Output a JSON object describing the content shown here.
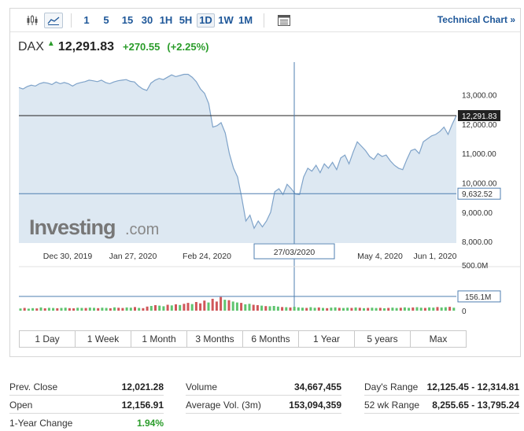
{
  "toolbar": {
    "chart_type_icons": [
      "candlestick-icon",
      "area-chart-icon"
    ],
    "timeframes": [
      "1",
      "5",
      "15",
      "30",
      "1H",
      "5H",
      "1D",
      "1W",
      "1M"
    ],
    "active_timeframe": "1D",
    "table_icon": "table-icon",
    "technical_chart_label": "Technical Chart »"
  },
  "quote": {
    "symbol": "DAX",
    "direction": "up",
    "price": "12,291.83",
    "change": "+270.55",
    "change_pct": "(+2.25%)"
  },
  "colors": {
    "area_fill": "#dde8f2",
    "line": "#7fa3c9",
    "positive": "#2a9c2a",
    "volume_up": "#5fc46f",
    "volume_down": "#d0575a",
    "link": "#1e5799"
  },
  "chart_data": {
    "type": "area",
    "title": "",
    "series": [
      {
        "values": [
          13250,
          13200,
          13280,
          13330,
          13300,
          13380,
          13420,
          13400,
          13350,
          13440,
          13380,
          13420,
          13380,
          13300,
          13380,
          13420,
          13450,
          13500,
          13480,
          13450,
          13500,
          13420,
          13380,
          13440,
          13480,
          13500,
          13520,
          13460,
          13440,
          13300,
          13200,
          13150,
          13400,
          13500,
          13560,
          13520,
          13600,
          13680,
          13620,
          13660,
          13700,
          13700,
          13600,
          13450,
          13200,
          13050,
          12700,
          11900,
          11950,
          12050,
          11700,
          11000,
          10500,
          10200,
          9500,
          8700,
          8900,
          8450,
          8700,
          8500,
          8700,
          9000,
          9700,
          9800,
          9600,
          9950,
          9800,
          9620,
          9600,
          10200,
          10500,
          10400,
          10600,
          10350,
          10650,
          10500,
          10700,
          10450,
          10850,
          10950,
          10650,
          11050,
          11400,
          11250,
          11100,
          10900,
          10800,
          11000,
          10900,
          10950,
          10750,
          10600,
          10500,
          10450,
          10800,
          11100,
          11150,
          11000,
          11400,
          11500,
          11600,
          11650,
          11750,
          11900,
          11650,
          12000,
          12291.83
        ]
      }
    ],
    "x_tick_labels": [
      "Dec 30, 2019",
      "Jan 27, 2020",
      "Feb 24, 2020",
      "May 4, 2020",
      "Jun 1, 2020"
    ],
    "crosshair_x_label": "27/03/2020",
    "y_tick_labels": [
      "13,000.00",
      "12,000.00",
      "11,000.00",
      "10,000.00",
      "9,000.00",
      "8,000.00"
    ],
    "ylim": [
      7950,
      13900
    ],
    "current_price_label": "12,291.83",
    "crosshair_y_label": "9,632.52",
    "volume": {
      "values_m": [
        24,
        30,
        22,
        28,
        25,
        35,
        26,
        31,
        29,
        27,
        30,
        33,
        28,
        26,
        32,
        30,
        29,
        34,
        31,
        28,
        33,
        30,
        27,
        36,
        32,
        29,
        35,
        33,
        40,
        30,
        28,
        45,
        52,
        60,
        55,
        48,
        65,
        58,
        70,
        62,
        75,
        85,
        72,
        95,
        80,
        110,
        90,
        130,
        100,
        150,
        120,
        115,
        100,
        90,
        85,
        70,
        75,
        65,
        60,
        55,
        50,
        48,
        52,
        45,
        40,
        38,
        35,
        42,
        36,
        33,
        30,
        38,
        32,
        35,
        30,
        28,
        34,
        36,
        31,
        29,
        33,
        30,
        35,
        32,
        28,
        30,
        33,
        29,
        31,
        27,
        30,
        34,
        29,
        32,
        36,
        31,
        35,
        38,
        33,
        30,
        36,
        34,
        40,
        35,
        38,
        42,
        33
      ],
      "up": [
        1,
        0,
        1,
        1,
        0,
        1,
        0,
        1,
        1,
        0,
        1,
        1,
        0,
        0,
        1,
        1,
        0,
        1,
        1,
        0,
        1,
        1,
        0,
        1,
        0,
        0,
        1,
        1,
        0,
        1,
        0,
        0,
        1,
        0,
        1,
        1,
        0,
        1,
        0,
        1,
        0,
        0,
        1,
        0,
        0,
        0,
        1,
        0,
        0,
        0,
        1,
        0,
        1,
        1,
        0,
        1,
        1,
        0,
        0,
        1,
        0,
        1,
        1,
        1,
        0,
        1,
        0,
        1,
        1,
        1,
        0,
        1,
        1,
        0,
        1,
        0,
        1,
        1,
        0,
        1,
        1,
        0,
        1,
        0,
        1,
        0,
        1,
        1,
        0,
        1,
        0,
        1,
        1,
        0,
        1,
        1,
        0,
        1,
        1,
        0,
        1,
        1,
        0,
        1,
        1,
        0,
        1
      ],
      "ylim_m": [
        0,
        500
      ],
      "y_tick_labels": [
        "500.0M",
        "0"
      ],
      "crosshair_label": "156.1M"
    },
    "grid": false,
    "watermark_text": "Investing",
    "watermark_suffix": ".com"
  },
  "ranges": [
    "1 Day",
    "1 Week",
    "1 Month",
    "3 Months",
    "6 Months",
    "1 Year",
    "5 years",
    "Max"
  ],
  "stats": {
    "col1": [
      {
        "label": "Prev. Close",
        "value": "12,021.28"
      },
      {
        "label": "Open",
        "value": "12,156.91"
      },
      {
        "label": "1-Year Change",
        "value": "1.94%"
      }
    ],
    "col2": [
      {
        "label": "Volume",
        "value": "34,667,455"
      },
      {
        "label": "Average Vol. (3m)",
        "value": "153,094,359"
      }
    ],
    "col3": [
      {
        "label": "Day's Range",
        "value": "12,125.45 - 12,314.81"
      },
      {
        "label": "52 wk Range",
        "value": "8,255.65 - 13,795.24"
      }
    ]
  }
}
